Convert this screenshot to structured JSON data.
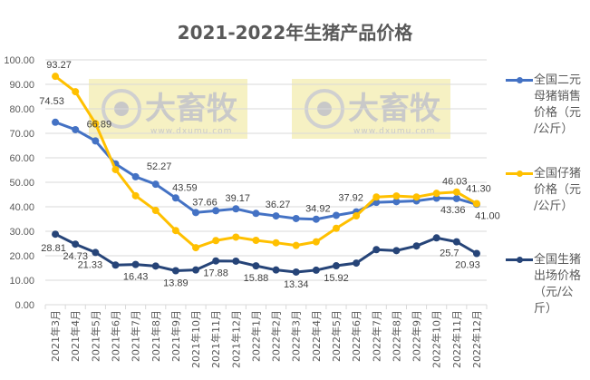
{
  "title": "2021-2022年生猪产品价格",
  "watermark": {
    "brand": "大畜牧",
    "site": "www.dxumu.com",
    "color": "#f5efb8"
  },
  "legend": [
    {
      "label": "全国二元母猪销售价格（元/公斤）",
      "lines": [
        "全国二元",
        "母猪销售",
        "价格（元",
        "/公斤）"
      ],
      "color": "#4472c4"
    },
    {
      "label": "全国仔猪价格（元/公斤）",
      "lines": [
        "全国仔猪",
        "价格（元",
        "/公斤）"
      ],
      "color": "#ffc000"
    },
    {
      "label": "全国生猪出场价格（元/公斤）",
      "lines": [
        "全国生猪",
        "出场价格",
        "（元/公",
        "斤）"
      ],
      "color": "#264478"
    }
  ],
  "chart_data": {
    "type": "line",
    "title": "2021-2022年生猪产品价格",
    "xlabel": "",
    "ylabel": "",
    "ylim": [
      0,
      100
    ],
    "yticks": [
      "0.00",
      "10.00",
      "20.00",
      "30.00",
      "40.00",
      "50.00",
      "60.00",
      "70.00",
      "80.00",
      "90.00",
      "100.00"
    ],
    "grid": true,
    "legend_position": "right",
    "categories": [
      "2021年3月",
      "2021年4月",
      "2021年5月",
      "2021年6月",
      "2021年7月",
      "2021年8月",
      "2021年9月",
      "2021年10月",
      "2021年11月",
      "2021年12月",
      "2022年1月",
      "2022年2月",
      "2022年3月",
      "2022年4月",
      "2022年5月",
      "2022年6月",
      "2022年7月",
      "2022年8月",
      "2022年9月",
      "2022年10月",
      "2022年11月",
      "2022年12月"
    ],
    "series": [
      {
        "name": "全国二元母猪销售价格（元/公斤）",
        "color": "#4472c4",
        "values": [
          74.53,
          71.5,
          66.89,
          57.5,
          52.27,
          49.2,
          43.59,
          37.66,
          38.4,
          39.17,
          37.3,
          36.27,
          35.2,
          34.92,
          36.5,
          37.92,
          41.8,
          42.1,
          42.4,
          43.5,
          43.36,
          41.0
        ],
        "labels": {
          "0": "74.53",
          "2": "66.89",
          "4": "52.27",
          "6": "43.59",
          "7": "37.66",
          "9": "39.17",
          "11": "36.27",
          "13": "34.92",
          "15": "37.92",
          "20": "43.36",
          "21": "41.00"
        }
      },
      {
        "name": "全国仔猪价格（元/公斤）",
        "color": "#ffc000",
        "values": [
          93.27,
          87.0,
          74.0,
          55.2,
          44.5,
          38.5,
          30.3,
          23.3,
          26.2,
          27.6,
          26.3,
          25.3,
          24.2,
          25.7,
          31.2,
          36.3,
          44.0,
          44.4,
          44.0,
          45.5,
          46.03,
          41.3
        ],
        "labels": {
          "0": "93.27",
          "20": "46.03",
          "21": "41.30"
        }
      },
      {
        "name": "全国生猪出场价格（元/公斤）",
        "color": "#264478",
        "values": [
          28.81,
          24.73,
          21.33,
          16.2,
          16.43,
          15.8,
          13.89,
          14.2,
          17.88,
          17.8,
          15.88,
          14.2,
          13.34,
          14.1,
          15.92,
          17.0,
          22.5,
          22.1,
          24.0,
          27.3,
          25.7,
          20.93
        ],
        "labels": {
          "0": "28.81",
          "1": "24.73",
          "2": "21.33",
          "4": "16.43",
          "6": "13.89",
          "8": "17.88",
          "10": "15.88",
          "12": "13.34",
          "14": "15.92",
          "20": "25.7",
          "21": "20.93"
        }
      }
    ]
  }
}
